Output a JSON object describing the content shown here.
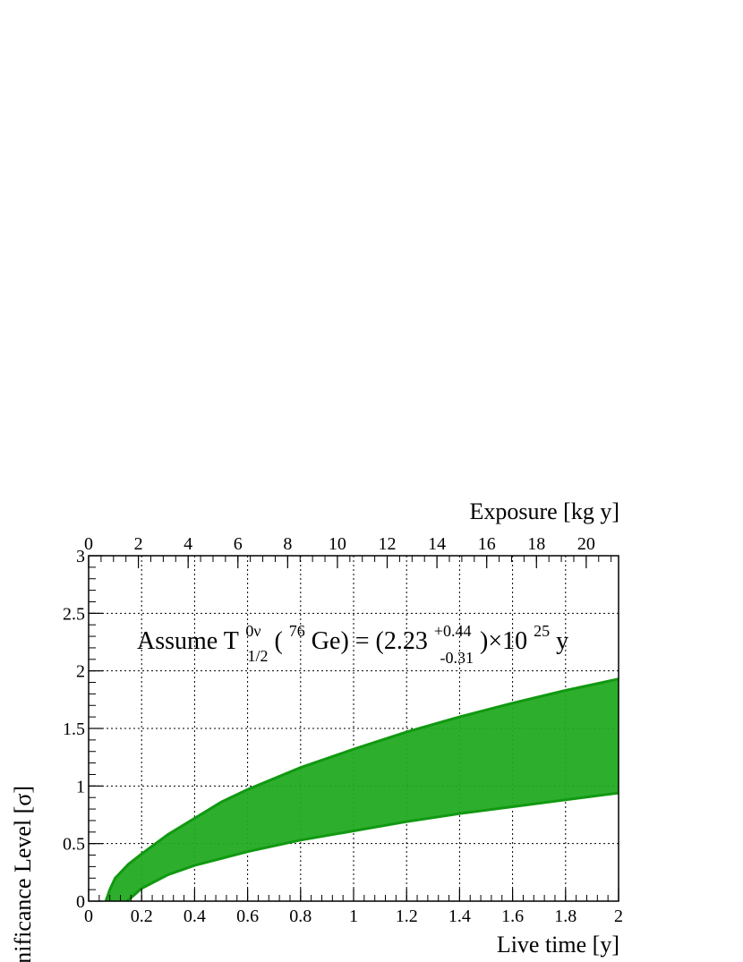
{
  "chart_data": {
    "type": "area",
    "xlabel": "Live time [y]",
    "ylabel": "Significance Level [σ]",
    "x2label": "Exposure [kg y]",
    "xlim": [
      0,
      2
    ],
    "ylim": [
      0,
      3
    ],
    "x2lim": [
      0,
      21.3
    ],
    "grid": true,
    "x_ticks": [
      "0",
      "0.2",
      "0.4",
      "0.6",
      "0.8",
      "1",
      "1.2",
      "1.4",
      "1.6",
      "1.8",
      "2"
    ],
    "y_ticks": [
      "0",
      "0.5",
      "1",
      "1.5",
      "2",
      "2.5",
      "3"
    ],
    "x2_ticks": [
      "0",
      "2",
      "4",
      "6",
      "8",
      "10",
      "12",
      "14",
      "16",
      "18",
      "20"
    ],
    "fill_color": "#22aa22",
    "edge_color": "#119911",
    "annotation": {
      "lead": "Assume T",
      "t_sup": "0ν",
      "t_sub": "1/2",
      "open": "(",
      "iso_sup": "76",
      "iso": "Ge) = (2.23",
      "err_up": "+0.44",
      "err_down": "-0.31",
      "mult": ")×10",
      "exp": "25",
      "unit": " y"
    },
    "series": [
      {
        "role": "upper",
        "x": [
          0.065,
          0.08,
          0.1,
          0.15,
          0.2,
          0.3,
          0.4,
          0.5,
          0.6,
          0.8,
          1.0,
          1.2,
          1.4,
          1.6,
          1.8,
          2.0
        ],
        "y": [
          0.0,
          0.1,
          0.2,
          0.32,
          0.41,
          0.58,
          0.72,
          0.86,
          0.97,
          1.16,
          1.32,
          1.47,
          1.6,
          1.72,
          1.83,
          1.93
        ]
      },
      {
        "role": "lower",
        "x": [
          0.145,
          0.17,
          0.2,
          0.3,
          0.4,
          0.5,
          0.6,
          0.8,
          1.0,
          1.2,
          1.4,
          1.6,
          1.8,
          2.0
        ],
        "y": [
          0.0,
          0.05,
          0.11,
          0.23,
          0.31,
          0.37,
          0.43,
          0.53,
          0.61,
          0.69,
          0.76,
          0.82,
          0.88,
          0.94
        ]
      }
    ]
  }
}
